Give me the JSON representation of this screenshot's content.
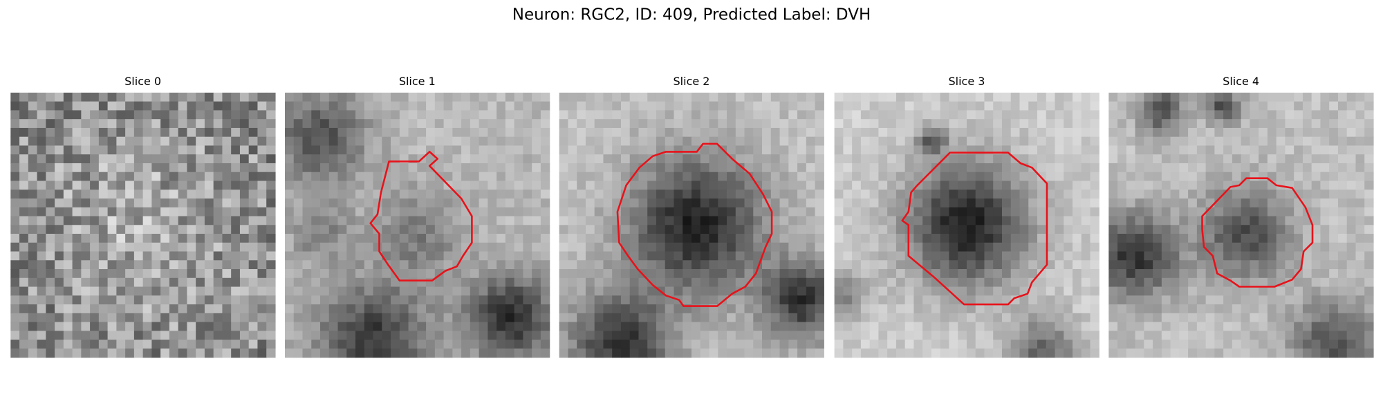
{
  "title": "Neuron: RGC2, ID: 409, Predicted Label: DVH",
  "panels": [
    {
      "title": "Slice 0"
    },
    {
      "title": "Slice 1"
    },
    {
      "title": "Slice 2"
    },
    {
      "title": "Slice 3"
    },
    {
      "title": "Slice 4"
    }
  ]
}
